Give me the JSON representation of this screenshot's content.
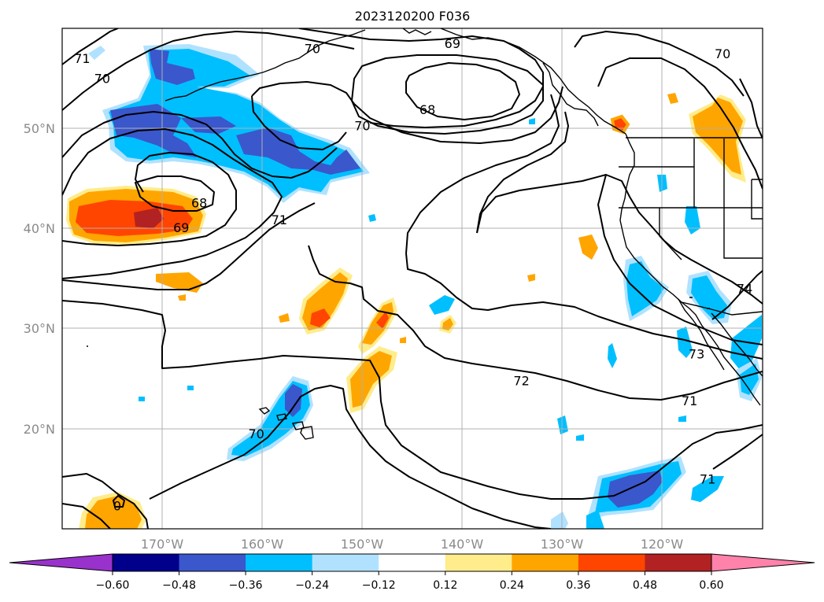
{
  "title": "2023120200 F036",
  "colors": {
    "level_fills": [
      "#9932cc",
      "#00008b",
      "#3a57cc",
      "#00bfff",
      "#b0e2ff",
      "#ffffff",
      "#ffec8b",
      "#ffa500",
      "#ff4500",
      "#b22222",
      "#ff82ab"
    ],
    "contour_line": "#000000",
    "grid": "#b0b0b0"
  },
  "longitude_ticks": [
    "170°W",
    "160°W",
    "150°W",
    "140°W",
    "130°W",
    "120°W"
  ],
  "latitude_ticks": [
    "50°N",
    "40°N",
    "30°N",
    "20°N"
  ],
  "map_extent": {
    "lon": [
      -180,
      -110
    ],
    "lat": [
      10,
      60
    ]
  },
  "colorbar": {
    "ticks": [
      "−0.60",
      "−0.48",
      "−0.36",
      "−0.24",
      "−0.12",
      "0.12",
      "0.24",
      "0.36",
      "0.48",
      "0.60"
    ],
    "extend": "both"
  },
  "contour_labels": [
    {
      "text": "71",
      "lon": -178,
      "lat": 57
    },
    {
      "text": "70",
      "lon": -176,
      "lat": 55
    },
    {
      "text": "70",
      "lon": -155,
      "lat": 58
    },
    {
      "text": "69",
      "lon": -141,
      "lat": 58.5
    },
    {
      "text": "68",
      "lon": -143.5,
      "lat": 51.9
    },
    {
      "text": "70",
      "lon": -150,
      "lat": 50.3
    },
    {
      "text": "70",
      "lon": -114,
      "lat": 57.5
    },
    {
      "text": "68",
      "lon": -166.3,
      "lat": 42.6
    },
    {
      "text": "69",
      "lon": -168.1,
      "lat": 40.1
    },
    {
      "text": "71",
      "lon": -158.3,
      "lat": 40.9
    },
    {
      "text": "74",
      "lon": -111.8,
      "lat": 34
    },
    {
      "text": "73",
      "lon": -116.6,
      "lat": 27.5
    },
    {
      "text": "72",
      "lon": -134.1,
      "lat": 24.8
    },
    {
      "text": "71",
      "lon": -117.3,
      "lat": 22.8
    },
    {
      "text": "70",
      "lon": -160.6,
      "lat": 19.5
    },
    {
      "text": "71",
      "lon": -115.5,
      "lat": 15
    },
    {
      "text": "0",
      "lon": -174.5,
      "lat": 12.3
    }
  ]
}
